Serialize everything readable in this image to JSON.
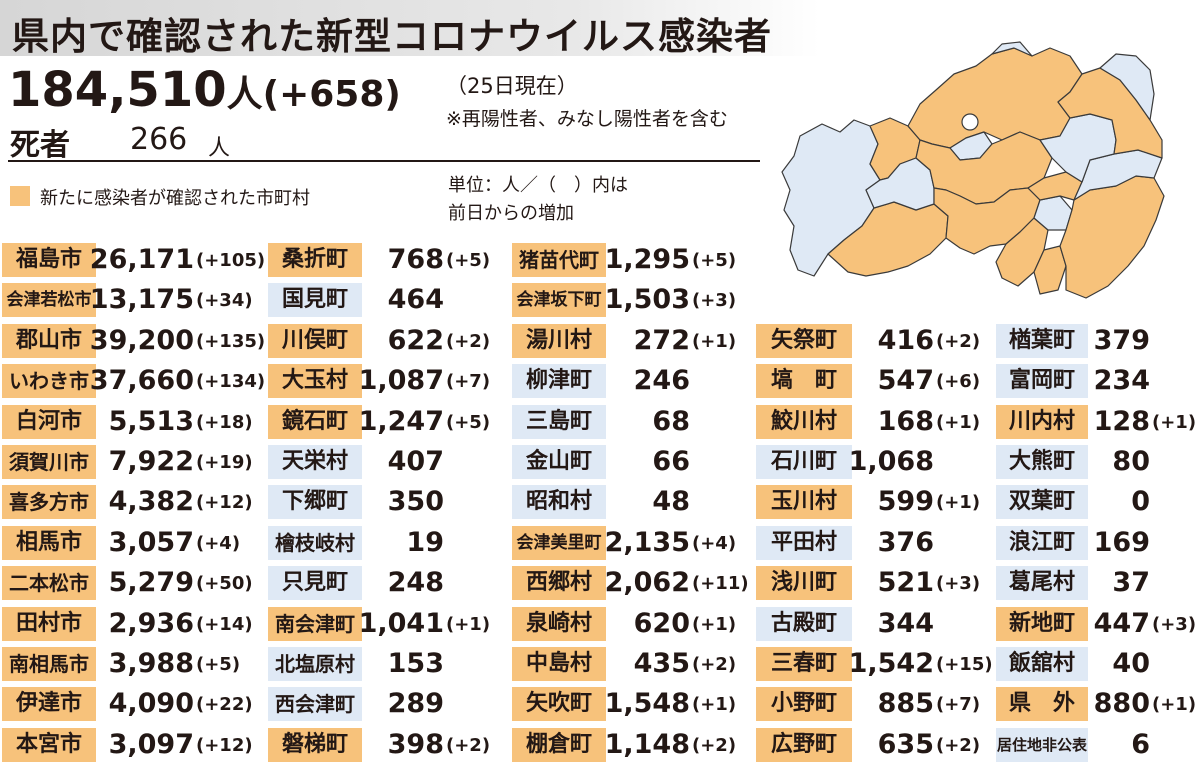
{
  "header": {
    "title": "県内で確認された新型コロナウイルス感染者",
    "total": "184,510",
    "total_unit": "人",
    "total_increase": "(+658)",
    "date": "（25日現在）",
    "note": "※再陽性者、みなし陽性者を含む",
    "deaths_label": "死者",
    "deaths_value": "266",
    "deaths_unit": "人"
  },
  "legend": {
    "label": "新たに感染者が確認された市町村",
    "unit_note_line1": "単位：人／（　）内は",
    "unit_note_line2": "前日からの増加"
  },
  "colors": {
    "new_case": "#f7c27b",
    "no_new_case": "#dfe9f5"
  },
  "columns": [
    [
      {
        "name": "福島市",
        "value": "26,171",
        "increase": "(+105)",
        "status": "new"
      },
      {
        "name": "会津若松市",
        "value": "13,175",
        "increase": "(+34)",
        "status": "new"
      },
      {
        "name": "郡山市",
        "value": "39,200",
        "increase": "(+135)",
        "status": "new"
      },
      {
        "name": "いわき市",
        "value": "37,660",
        "increase": "(+134)",
        "status": "new"
      },
      {
        "name": "白河市",
        "value": "5,513",
        "increase": "(+18)",
        "status": "new"
      },
      {
        "name": "須賀川市",
        "value": "7,922",
        "increase": "(+19)",
        "status": "new"
      },
      {
        "name": "喜多方市",
        "value": "4,382",
        "increase": "(+12)",
        "status": "new"
      },
      {
        "name": "相馬市",
        "value": "3,057",
        "increase": "(+4)",
        "status": "new"
      },
      {
        "name": "二本松市",
        "value": "5,279",
        "increase": "(+50)",
        "status": "new"
      },
      {
        "name": "田村市",
        "value": "2,936",
        "increase": "(+14)",
        "status": "new"
      },
      {
        "name": "南相馬市",
        "value": "3,988",
        "increase": "(+5)",
        "status": "new"
      },
      {
        "name": "伊達市",
        "value": "4,090",
        "increase": "(+22)",
        "status": "new"
      },
      {
        "name": "本宮市",
        "value": "3,097",
        "increase": "(+12)",
        "status": "new"
      }
    ],
    [
      {
        "name": "桑折町",
        "value": "768",
        "increase": "(+5)",
        "status": "new"
      },
      {
        "name": "国見町",
        "value": "464",
        "increase": "",
        "status": "old"
      },
      {
        "name": "川俣町",
        "value": "622",
        "increase": "(+2)",
        "status": "new"
      },
      {
        "name": "大玉村",
        "value": "1,087",
        "increase": "(+7)",
        "status": "new"
      },
      {
        "name": "鏡石町",
        "value": "1,247",
        "increase": "(+5)",
        "status": "new"
      },
      {
        "name": "天栄村",
        "value": "407",
        "increase": "",
        "status": "old"
      },
      {
        "name": "下郷町",
        "value": "350",
        "increase": "",
        "status": "old"
      },
      {
        "name": "檜枝岐村",
        "value": "19",
        "increase": "",
        "status": "old"
      },
      {
        "name": "只見町",
        "value": "248",
        "increase": "",
        "status": "old"
      },
      {
        "name": "南会津町",
        "value": "1,041",
        "increase": "(+1)",
        "status": "new"
      },
      {
        "name": "北塩原村",
        "value": "153",
        "increase": "",
        "status": "old"
      },
      {
        "name": "西会津町",
        "value": "289",
        "increase": "",
        "status": "old"
      },
      {
        "name": "磐梯町",
        "value": "398",
        "increase": "(+2)",
        "status": "new"
      }
    ],
    [
      {
        "name": "猪苗代町",
        "value": "1,295",
        "increase": "(+5)",
        "status": "new"
      },
      {
        "name": "会津坂下町",
        "value": "1,503",
        "increase": "(+3)",
        "status": "new"
      },
      {
        "name": "湯川村",
        "value": "272",
        "increase": "(+1)",
        "status": "new"
      },
      {
        "name": "柳津町",
        "value": "246",
        "increase": "",
        "status": "old"
      },
      {
        "name": "三島町",
        "value": "68",
        "increase": "",
        "status": "old"
      },
      {
        "name": "金山町",
        "value": "66",
        "increase": "",
        "status": "old"
      },
      {
        "name": "昭和村",
        "value": "48",
        "increase": "",
        "status": "old"
      },
      {
        "name": "会津美里町",
        "value": "2,135",
        "increase": "(+4)",
        "status": "new"
      },
      {
        "name": "西郷村",
        "value": "2,062",
        "increase": "(+11)",
        "status": "new"
      },
      {
        "name": "泉崎村",
        "value": "620",
        "increase": "(+1)",
        "status": "new"
      },
      {
        "name": "中島村",
        "value": "435",
        "increase": "(+2)",
        "status": "new"
      },
      {
        "name": "矢吹町",
        "value": "1,548",
        "increase": "(+1)",
        "status": "new"
      },
      {
        "name": "棚倉町",
        "value": "1,148",
        "increase": "(+2)",
        "status": "new"
      }
    ],
    [
      {
        "name": "矢祭町",
        "value": "416",
        "increase": "(+2)",
        "status": "new"
      },
      {
        "name": "塙　町",
        "value": "547",
        "increase": "(+6)",
        "status": "new"
      },
      {
        "name": "鮫川村",
        "value": "168",
        "increase": "(+1)",
        "status": "new"
      },
      {
        "name": "石川町",
        "value": "1,068",
        "increase": "",
        "status": "old"
      },
      {
        "name": "玉川村",
        "value": "599",
        "increase": "(+1)",
        "status": "new"
      },
      {
        "name": "平田村",
        "value": "376",
        "increase": "",
        "status": "old"
      },
      {
        "name": "浅川町",
        "value": "521",
        "increase": "(+3)",
        "status": "new"
      },
      {
        "name": "古殿町",
        "value": "344",
        "increase": "",
        "status": "old"
      },
      {
        "name": "三春町",
        "value": "1,542",
        "increase": "(+15)",
        "status": "new"
      },
      {
        "name": "小野町",
        "value": "885",
        "increase": "(+7)",
        "status": "new"
      },
      {
        "name": "広野町",
        "value": "635",
        "increase": "(+2)",
        "status": "new"
      }
    ],
    [
      {
        "name": "楢葉町",
        "value": "379",
        "increase": "",
        "status": "old"
      },
      {
        "name": "富岡町",
        "value": "234",
        "increase": "",
        "status": "old"
      },
      {
        "name": "川内村",
        "value": "128",
        "increase": "(+1)",
        "status": "new"
      },
      {
        "name": "大熊町",
        "value": "80",
        "increase": "",
        "status": "old"
      },
      {
        "name": "双葉町",
        "value": "0",
        "increase": "",
        "status": "old"
      },
      {
        "name": "浪江町",
        "value": "169",
        "increase": "",
        "status": "old"
      },
      {
        "name": "葛尾村",
        "value": "37",
        "increase": "",
        "status": "old"
      },
      {
        "name": "新地町",
        "value": "447",
        "increase": "(+3)",
        "status": "new"
      },
      {
        "name": "飯舘村",
        "value": "40",
        "increase": "",
        "status": "old"
      },
      {
        "name": "県　外",
        "value": "880",
        "increase": "(+1)",
        "status": "new"
      },
      {
        "name": "居住地非公表",
        "value": "6",
        "increase": "",
        "status": "old"
      }
    ]
  ]
}
